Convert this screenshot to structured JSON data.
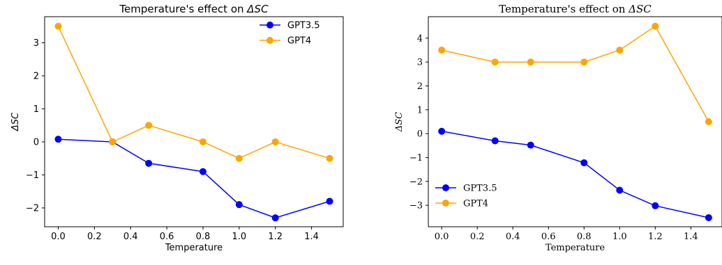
{
  "chart_data": [
    {
      "type": "line",
      "title_prefix": "Temperature's effect on ",
      "title_symbol": "ΔSC",
      "xlabel": "Temperature",
      "ylabel": "ΔSC",
      "x": [
        0.0,
        0.3,
        0.5,
        0.8,
        1.0,
        1.2,
        1.5
      ],
      "xlim": [
        -0.075,
        1.575
      ],
      "ylim": [
        -2.57,
        3.79
      ],
      "xticks": [
        0.0,
        0.2,
        0.4,
        0.6,
        0.8,
        1.0,
        1.2,
        1.4
      ],
      "xtick_labels": [
        "0.0",
        "0.2",
        "0.4",
        "0.6",
        "0.8",
        "1.0",
        "1.2",
        "1.4"
      ],
      "yticks": [
        -2,
        -1,
        0,
        1,
        2,
        3
      ],
      "ytick_labels": [
        "−2",
        "−1",
        "0",
        "1",
        "2",
        "3"
      ],
      "grid": false,
      "legend_position": "top-right",
      "series": [
        {
          "name": "GPT3.5",
          "color": "#0000ff",
          "values": [
            0.08,
            0.0,
            -0.65,
            -0.9,
            -1.9,
            -2.3,
            -1.8
          ]
        },
        {
          "name": "GPT4",
          "color": "#ffa500",
          "values": [
            3.5,
            0.0,
            0.5,
            0.0,
            -0.5,
            0.0,
            -0.5
          ]
        }
      ]
    },
    {
      "type": "line",
      "title_prefix": "Temperature's effect on ",
      "title_symbol": "ΔSC",
      "xlabel": "Temperature",
      "ylabel": "ΔSC",
      "x": [
        0.0,
        0.3,
        0.5,
        0.8,
        1.0,
        1.2,
        1.5
      ],
      "xlim": [
        -0.075,
        1.575
      ],
      "ylim": [
        -3.9,
        4.9
      ],
      "xticks": [
        0.0,
        0.2,
        0.4,
        0.6,
        0.8,
        1.0,
        1.2,
        1.4
      ],
      "xtick_labels": [
        "0.0",
        "0.2",
        "0.4",
        "0.6",
        "0.8",
        "1.0",
        "1.2",
        "1.4"
      ],
      "yticks": [
        -3,
        -2,
        -1,
        0,
        1,
        2,
        3,
        4
      ],
      "ytick_labels": [
        "−3",
        "−2",
        "−1",
        "0",
        "1",
        "2",
        "3",
        "4"
      ],
      "grid": false,
      "legend_position": "bottom-left",
      "series": [
        {
          "name": "GPT3.5",
          "color": "#0000ff",
          "values": [
            0.1,
            -0.3,
            -0.48,
            -1.22,
            -2.37,
            -3.02,
            -3.52
          ]
        },
        {
          "name": "GPT4",
          "color": "#ffa500",
          "values": [
            3.5,
            3.0,
            3.0,
            3.0,
            3.5,
            4.5,
            0.5
          ]
        }
      ]
    }
  ]
}
